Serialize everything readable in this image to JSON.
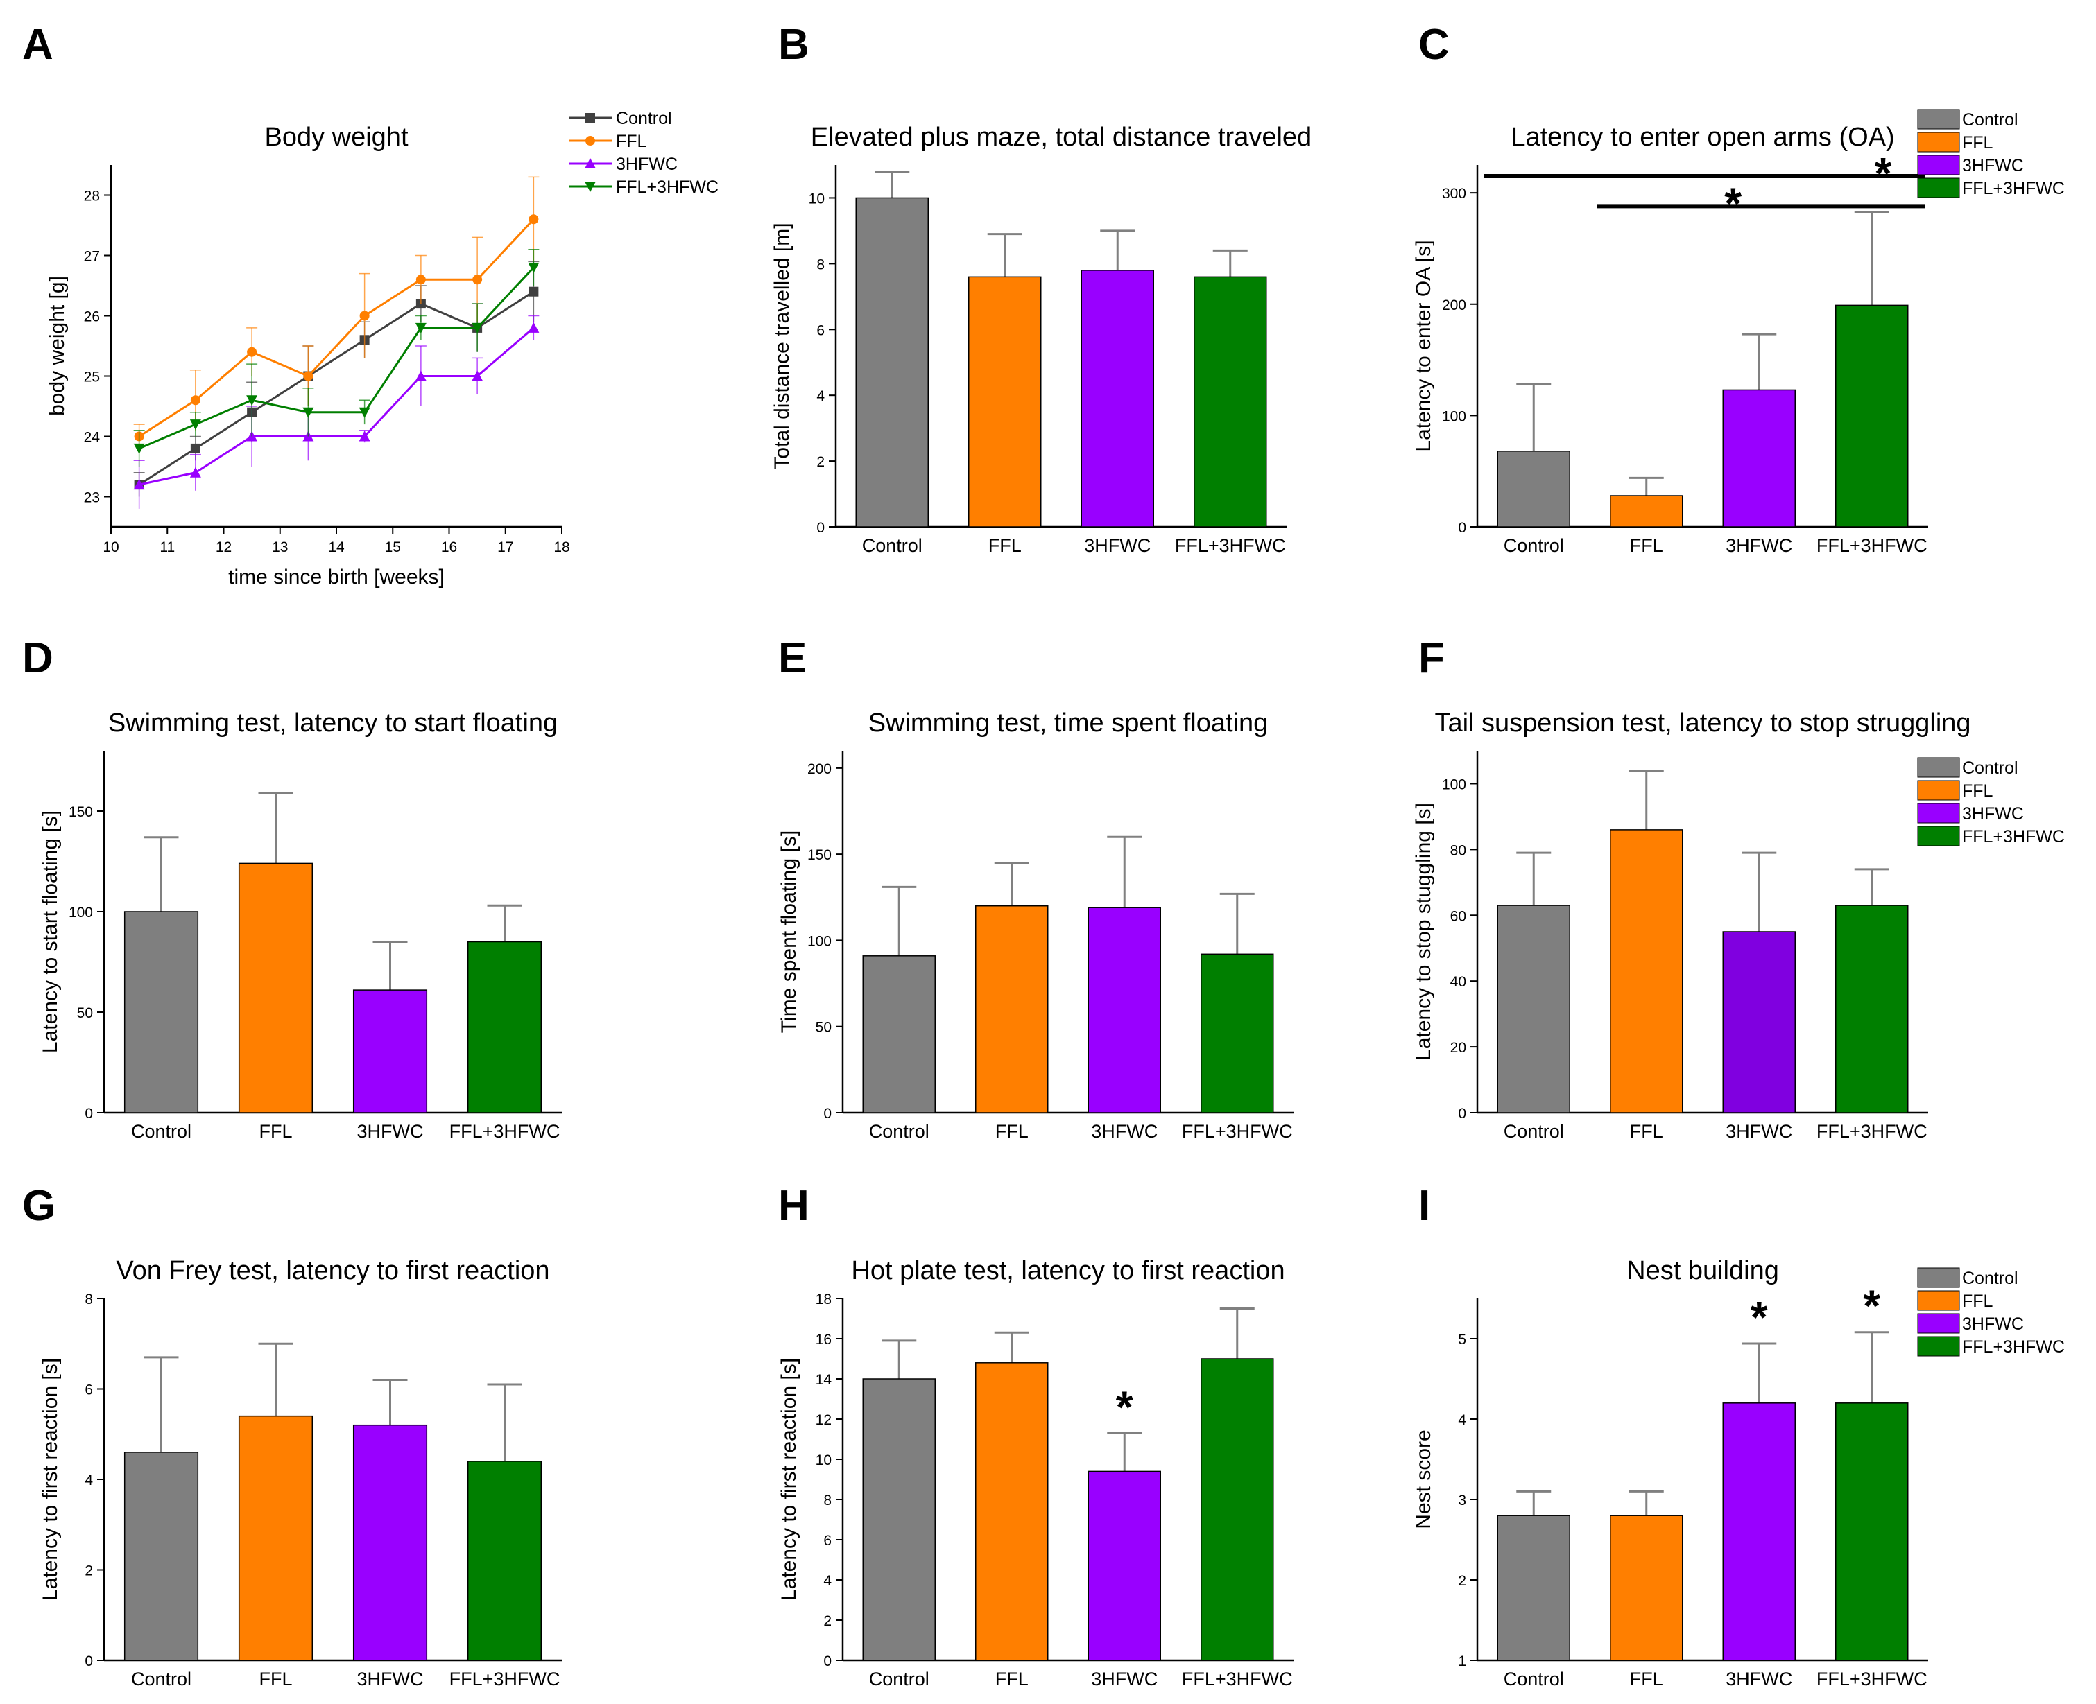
{
  "figure": {
    "colors": {
      "Control": "#7f7f7f",
      "FFL": "#ff7f00",
      "3HFWC": "#9900ff",
      "3HFWC_dark": "#8000e0",
      "FFL+3HFWC": "#007f00",
      "Control_line": "#404040",
      "axis": "#000000",
      "error": "#808080"
    }
  },
  "chart_data": [
    {
      "id": "A",
      "panel_label": "A",
      "type": "line",
      "title": "Body weight",
      "xlabel": "time since birth [weeks]",
      "ylabel": "body weight [g]",
      "xlim": [
        10,
        18
      ],
      "ylim": [
        22.5,
        28.5
      ],
      "xticks": [
        10,
        11,
        12,
        13,
        14,
        15,
        16,
        17,
        18
      ],
      "yticks": [
        23,
        24,
        25,
        26,
        27,
        28
      ],
      "legend": "top-right",
      "x": [
        10.5,
        11.5,
        12.5,
        13.5,
        14.5,
        15.5,
        16.5,
        17.5
      ],
      "series": [
        {
          "name": "Control",
          "color": "#404040",
          "marker": "square",
          "values": [
            23.2,
            23.8,
            24.4,
            25.0,
            25.6,
            26.2,
            25.8,
            26.4
          ],
          "errors": [
            0.2,
            0.2,
            0.5,
            0.5,
            0.3,
            0.3,
            0.4,
            0.5
          ]
        },
        {
          "name": "FFL",
          "color": "#ff7f00",
          "marker": "circle",
          "line": true,
          "values": [
            24.0,
            24.6,
            25.4,
            25.0,
            26.0,
            26.6,
            26.6,
            27.6
          ],
          "errors": [
            0.2,
            0.5,
            0.4,
            0.5,
            0.7,
            0.4,
            0.7,
            0.7
          ]
        },
        {
          "name": "3HFWC",
          "color": "#9900ff",
          "marker": "triangle-up",
          "values": [
            23.2,
            23.4,
            24.0,
            24.0,
            24.0,
            25.0,
            25.0,
            25.8
          ],
          "errors": [
            0.4,
            0.3,
            0.5,
            0.4,
            0.1,
            0.5,
            0.3,
            0.2
          ]
        },
        {
          "name": "FFL+3HFWC",
          "color": "#007f00",
          "marker": "triangle-down",
          "values": [
            23.8,
            24.2,
            24.6,
            24.4,
            24.4,
            25.8,
            25.8,
            26.8
          ],
          "errors": [
            0.3,
            0.2,
            0.6,
            0.4,
            0.2,
            0.2,
            0.4,
            0.3
          ]
        }
      ]
    },
    {
      "id": "B",
      "panel_label": "B",
      "type": "bar",
      "title": "Elevated plus maze, total distance traveled",
      "xlabel": "",
      "ylabel": "Total distance travelled [m]",
      "ylim": [
        0,
        11
      ],
      "yticks": [
        0,
        2,
        4,
        6,
        8,
        10
      ],
      "categories": [
        "Control",
        "FFL",
        "3HFWC",
        "FFL+3HFWC"
      ],
      "values": [
        10.0,
        7.6,
        7.8,
        7.6
      ],
      "errors": [
        0.8,
        1.3,
        1.2,
        0.8
      ]
    },
    {
      "id": "C",
      "panel_label": "C",
      "type": "bar",
      "title": "Latency to enter open arms (OA)",
      "xlabel": "",
      "ylabel": "Latency to enter OA [s]",
      "ylim": [
        0,
        325
      ],
      "yticks": [
        0,
        100,
        200,
        300
      ],
      "categories": [
        "Control",
        "FFL",
        "3HFWC",
        "FFL+3HFWC"
      ],
      "values": [
        68,
        28,
        123,
        199
      ],
      "errors": [
        60,
        16,
        50,
        84
      ],
      "legend": "top-right",
      "significance": [
        {
          "from": 0,
          "to": 3,
          "label": "*",
          "y": 315
        },
        {
          "from": 1,
          "to": 3,
          "label": "*",
          "y": 288
        }
      ]
    },
    {
      "id": "D",
      "panel_label": "D",
      "type": "bar",
      "title": "Swimming test, latency to start floating",
      "xlabel": "",
      "ylabel": "Latency to start floating [s]",
      "ylim": [
        0,
        180
      ],
      "yticks": [
        0,
        50,
        100,
        150
      ],
      "categories": [
        "Control",
        "FFL",
        "3HFWC",
        "FFL+3HFWC"
      ],
      "values": [
        100,
        124,
        61,
        85
      ],
      "errors": [
        37,
        35,
        24,
        18
      ]
    },
    {
      "id": "E",
      "panel_label": "E",
      "type": "bar",
      "title": "Swimming test, time spent floating",
      "xlabel": "",
      "ylabel": "Time spent floating [s]",
      "ylim": [
        0,
        210
      ],
      "yticks": [
        0,
        50,
        100,
        150,
        200
      ],
      "categories": [
        "Control",
        "FFL",
        "3HFWC",
        "FFL+3HFWC"
      ],
      "values": [
        91,
        120,
        119,
        92
      ],
      "errors": [
        40,
        25,
        41,
        35
      ]
    },
    {
      "id": "F",
      "panel_label": "F",
      "type": "bar",
      "title": "Tail suspension test, latency to stop struggling",
      "xlabel": "",
      "ylabel": "Latency to stop stuggling [s]",
      "ylim": [
        0,
        110
      ],
      "yticks": [
        0,
        20,
        40,
        60,
        80,
        100
      ],
      "categories": [
        "Control",
        "FFL",
        "3HFWC",
        "FFL+3HFWC"
      ],
      "values": [
        63,
        86,
        55,
        63
      ],
      "errors": [
        16,
        18,
        24,
        11
      ],
      "legend": "top-right"
    },
    {
      "id": "G",
      "panel_label": "G",
      "type": "bar",
      "title": "Von Frey test, latency to first reaction",
      "xlabel": "",
      "ylabel": "Latency to first reaction [s]",
      "ylim": [
        0,
        8
      ],
      "yticks": [
        0,
        2,
        4,
        6,
        8
      ],
      "categories": [
        "Control",
        "FFL",
        "3HFWC",
        "FFL+3HFWC"
      ],
      "values": [
        4.6,
        5.4,
        5.2,
        4.4
      ],
      "errors": [
        2.1,
        1.6,
        1.0,
        1.7
      ]
    },
    {
      "id": "H",
      "panel_label": "H",
      "type": "bar",
      "title": "Hot plate test, latency to first reaction",
      "xlabel": "",
      "ylabel": "Latency to first reaction [s]",
      "ylim": [
        0,
        18
      ],
      "yticks": [
        0,
        2,
        4,
        6,
        8,
        10,
        12,
        14,
        16,
        18
      ],
      "categories": [
        "Control",
        "FFL",
        "3HFWC",
        "FFL+3HFWC"
      ],
      "values": [
        14.0,
        14.8,
        9.4,
        15.0
      ],
      "errors": [
        1.9,
        1.5,
        1.9,
        2.5
      ],
      "stars": [
        {
          "index": 2,
          "label": "*"
        }
      ]
    },
    {
      "id": "I",
      "panel_label": "I",
      "type": "bar",
      "title": "Nest building",
      "xlabel": "",
      "ylabel": "Nest score",
      "ylim": [
        1,
        5.5
      ],
      "yticks": [
        1,
        2,
        3,
        4,
        5
      ],
      "categories": [
        "Control",
        "FFL",
        "3HFWC",
        "FFL+3HFWC"
      ],
      "values": [
        2.8,
        2.8,
        4.2,
        4.2
      ],
      "errors": [
        0.3,
        0.3,
        0.74,
        0.88
      ],
      "legend": "top-right",
      "stars": [
        {
          "index": 2,
          "label": "*"
        },
        {
          "index": 3,
          "label": "*"
        }
      ]
    }
  ]
}
